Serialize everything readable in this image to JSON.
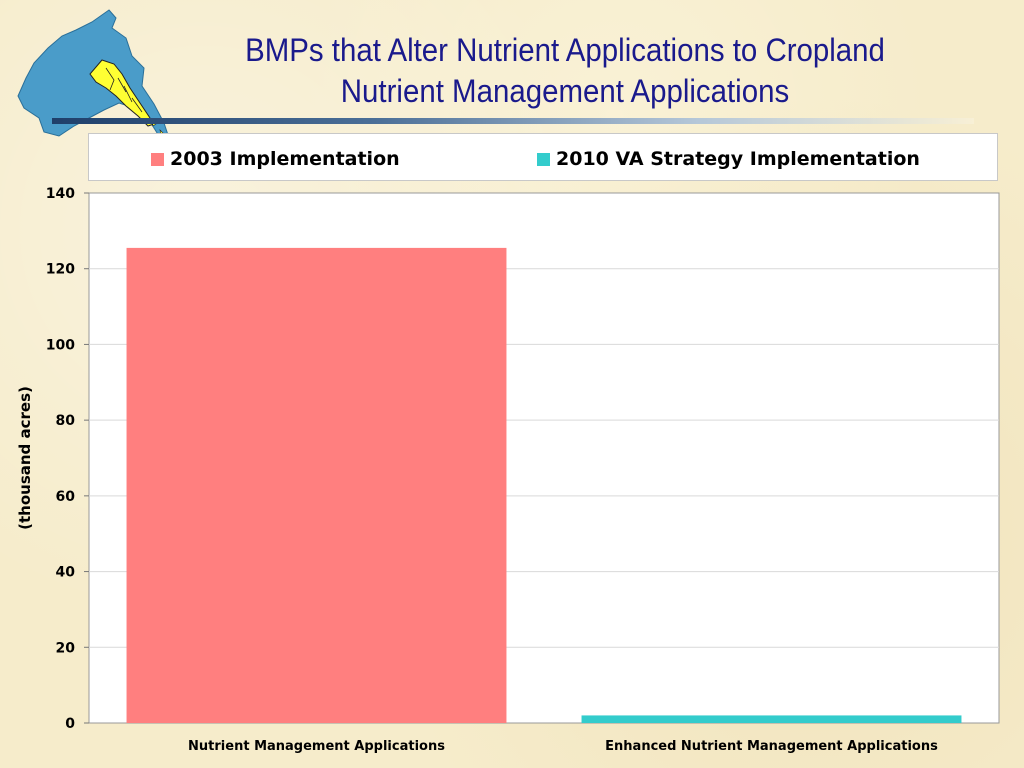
{
  "title": {
    "line1": "BMPs that Alter Nutrient Applications to Cropland",
    "line2": "Nutrient Management Applications"
  },
  "colors": {
    "series_2003": "#ff7f7f",
    "series_2010": "#33cccc",
    "title": "#1a1a8c",
    "map_water": "#4a9cc9",
    "map_region": "#ffff33"
  },
  "chart_data": {
    "type": "bar",
    "categories": [
      "Nutrient Management Applications",
      "Enhanced Nutrient Management Applications"
    ],
    "series": [
      {
        "name": "2003 Implementation",
        "values": [
          125.5,
          null
        ]
      },
      {
        "name": "2010 VA Strategy Implementation",
        "values": [
          null,
          2
        ]
      }
    ],
    "ylabel": "(thousand acres)",
    "xlabel": "",
    "ylim": [
      0,
      140
    ],
    "yticks": [
      "0",
      "20",
      "40",
      "60",
      "80",
      "100",
      "120",
      "140"
    ],
    "grid": true,
    "legend_position": "top"
  }
}
